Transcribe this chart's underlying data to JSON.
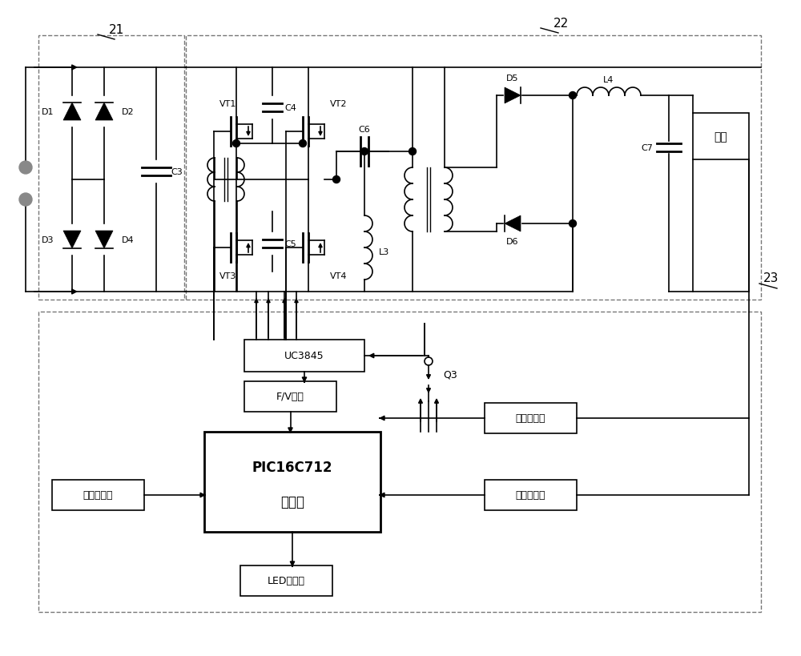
{
  "bg": "#ffffff",
  "lc": "#000000",
  "gc": "#777777",
  "labels": {
    "box21": "21",
    "box22": "22",
    "box23": "23",
    "D1": "D1",
    "D2": "D2",
    "D3": "D3",
    "D4": "D4",
    "D5": "D5",
    "D6": "D6",
    "C3": "C3",
    "C4": "C4",
    "C5": "C5",
    "C6": "C6",
    "C7": "C7",
    "L3": "L3",
    "L4": "L4",
    "VT1": "VT1",
    "VT2": "VT2",
    "VT3": "VT3",
    "VT4": "VT4",
    "battery": "电池",
    "UC3845": "UC3845",
    "FV": "F/V转换",
    "PIC_top": "PIC16C712",
    "PIC_bot": "单片机",
    "LED": "LED指示灯",
    "temp": "温度传感器",
    "current": "电流传感器",
    "voltage": "电压传感器",
    "Q3": "Q3"
  }
}
